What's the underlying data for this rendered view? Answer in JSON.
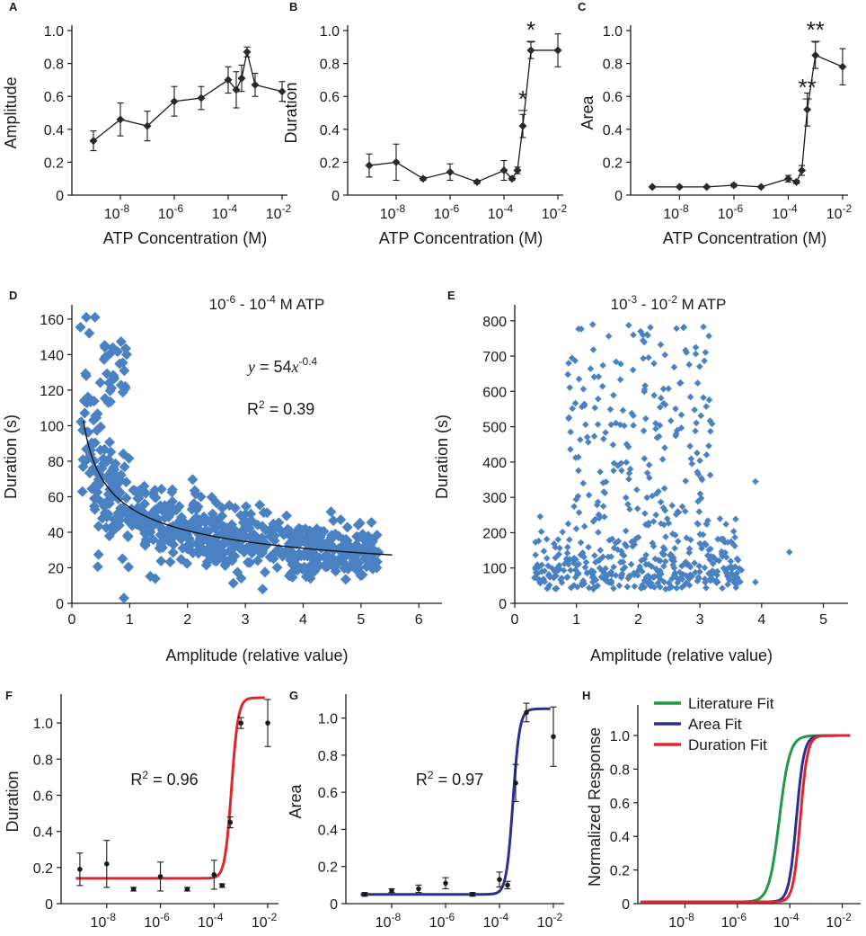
{
  "figure_title": "",
  "chart_data": [
    {
      "id": "A",
      "type": "line",
      "title": "",
      "xlabel": "ATP Concentration (M)",
      "ylabel": "Amplitude",
      "xscale": "log",
      "xlim": [
        -9.8,
        -1.8
      ],
      "ylim": [
        0,
        1.0
      ],
      "yticks": [
        "0",
        "0.2",
        "0.4",
        "0.6",
        "0.8",
        "1.0"
      ],
      "xticks": [
        {
          "base": "10",
          "exp": "-8"
        },
        {
          "base": "10",
          "exp": "-6"
        },
        {
          "base": "10",
          "exp": "-4"
        },
        {
          "base": "10",
          "exp": "-2"
        }
      ],
      "x": [
        -9,
        -8,
        -7,
        -6,
        -5,
        -4,
        -3.7,
        -3.5,
        -3.3,
        -3,
        -2
      ],
      "y": [
        0.33,
        0.46,
        0.42,
        0.57,
        0.59,
        0.7,
        0.64,
        0.71,
        0.87,
        0.67,
        0.63
      ],
      "err": [
        0.06,
        0.1,
        0.09,
        0.09,
        0.07,
        0.08,
        0.11,
        0.08,
        0.03,
        0.07,
        0.06
      ],
      "annotations": []
    },
    {
      "id": "B",
      "type": "line",
      "title": "",
      "xlabel": "ATP Concentration (M)",
      "ylabel": "Duration",
      "xscale": "log",
      "xlim": [
        -9.8,
        -1.8
      ],
      "ylim": [
        0,
        1.0
      ],
      "yticks": [
        "0",
        "0.2",
        "0.4",
        "0.6",
        "0.8",
        "1.0"
      ],
      "xticks": [
        {
          "base": "10",
          "exp": "-8"
        },
        {
          "base": "10",
          "exp": "-6"
        },
        {
          "base": "10",
          "exp": "-4"
        },
        {
          "base": "10",
          "exp": "-2"
        }
      ],
      "x": [
        -9,
        -8,
        -7,
        -6,
        -5,
        -4,
        -3.7,
        -3.5,
        -3.3,
        -3,
        -2
      ],
      "y": [
        0.18,
        0.2,
        0.1,
        0.14,
        0.08,
        0.15,
        0.1,
        0.15,
        0.42,
        0.88,
        0.88
      ],
      "err": [
        0.07,
        0.11,
        0.01,
        0.05,
        0.01,
        0.06,
        0.01,
        0.02,
        0.07,
        0.05,
        0.1
      ],
      "annotations": [
        {
          "text": "*",
          "x": -3.3,
          "y": 0.58
        },
        {
          "text": "*",
          "x": -3.0,
          "y": 1.0
        }
      ]
    },
    {
      "id": "C",
      "type": "line",
      "title": "",
      "xlabel": "ATP Concentration (M)",
      "ylabel": "Area",
      "xscale": "log",
      "xlim": [
        -9.8,
        -1.8
      ],
      "ylim": [
        0,
        1.0
      ],
      "yticks": [
        "0",
        "0.2",
        "0.4",
        "0.6",
        "0.8",
        "1.0"
      ],
      "xticks": [
        {
          "base": "10",
          "exp": "-8"
        },
        {
          "base": "10",
          "exp": "-6"
        },
        {
          "base": "10",
          "exp": "-4"
        },
        {
          "base": "10",
          "exp": "-2"
        }
      ],
      "x": [
        -9,
        -8,
        -7,
        -6,
        -5,
        -4,
        -3.7,
        -3.5,
        -3.3,
        -3,
        -2
      ],
      "y": [
        0.05,
        0.05,
        0.05,
        0.06,
        0.05,
        0.1,
        0.08,
        0.15,
        0.52,
        0.85,
        0.78
      ],
      "err": [
        0.005,
        0.005,
        0.005,
        0.01,
        0.005,
        0.02,
        0.01,
        0.03,
        0.1,
        0.08,
        0.11
      ],
      "annotations": [
        {
          "text": "**",
          "x": -3.3,
          "y": 0.65
        },
        {
          "text": "**",
          "x": -3.0,
          "y": 1.0
        }
      ]
    },
    {
      "id": "D",
      "type": "scatter",
      "title": "",
      "xlabel": "Amplitude (relative value)",
      "ylabel": "Duration (s)",
      "xlim": [
        0,
        6.4
      ],
      "ylim": [
        0,
        165
      ],
      "xticks": [
        "0",
        "1",
        "2",
        "3",
        "4",
        "5",
        "6"
      ],
      "yticks": [
        "0",
        "20",
        "40",
        "60",
        "80",
        "100",
        "120",
        "140",
        "160"
      ],
      "legend_text": {
        "pre": "10",
        "exp": "-6",
        "mid": " - 10",
        "exp2": "-4",
        "post": " M ATP"
      },
      "equation": {
        "y": "y",
        "eq": " = 54",
        "x": "x",
        "exp": "-0.4"
      },
      "r2": {
        "pre": "R",
        "sup": "2",
        "post": " = 0.39"
      },
      "fit": {
        "a": 54,
        "b": -0.4,
        "xmin": 0.2,
        "xmax": 5.55
      },
      "point_count": 640,
      "color": "#4a81c3"
    },
    {
      "id": "E",
      "type": "scatter",
      "title": "",
      "xlabel": "Amplitude (relative value)",
      "ylabel": "Duration (s)",
      "xlim": [
        0,
        5.4
      ],
      "ylim": [
        0,
        830
      ],
      "xticks": [
        "0",
        "1",
        "2",
        "3",
        "4",
        "5"
      ],
      "yticks": [
        "0",
        "100",
        "200",
        "300",
        "400",
        "500",
        "600",
        "700",
        "800"
      ],
      "legend_text": {
        "pre": "10",
        "exp": "-3",
        "mid": " - 10",
        "exp2": "-2",
        "post": " M ATP"
      },
      "point_count": 560,
      "color": "#4a81c3"
    },
    {
      "id": "F",
      "type": "scatter",
      "title": "",
      "xlabel": "ATP Concentration (M)",
      "ylabel": "Duration",
      "xscale": "log",
      "xlim": [
        -9.7,
        -1.6
      ],
      "ylim": [
        0,
        1.13
      ],
      "yticks": [
        "0",
        "0.2",
        "0.4",
        "0.6",
        "0.8",
        "1.0"
      ],
      "xticks": [
        {
          "base": "10",
          "exp": "-8"
        },
        {
          "base": "10",
          "exp": "-6"
        },
        {
          "base": "10",
          "exp": "-4"
        },
        {
          "base": "10",
          "exp": "-2"
        }
      ],
      "x": [
        -9,
        -8,
        -7,
        -6,
        -5,
        -4,
        -3.7,
        -3.4,
        -3,
        -2
      ],
      "y": [
        0.19,
        0.22,
        0.08,
        0.15,
        0.08,
        0.16,
        0.1,
        0.45,
        1.0,
        1.0
      ],
      "err": [
        0.09,
        0.13,
        0.01,
        0.08,
        0.01,
        0.08,
        0.01,
        0.03,
        0.03,
        0.13
      ],
      "r2": {
        "pre": "R",
        "sup": "2",
        "post": " = 0.96"
      },
      "fit": {
        "bottom": 0.14,
        "top": 1.14,
        "logEC50": -3.35,
        "hill": 3.5
      },
      "fit_color": "#e0262c"
    },
    {
      "id": "G",
      "type": "scatter",
      "title": "",
      "xlabel": "ATP Concentration (M)",
      "ylabel": "Area",
      "xscale": "log",
      "xlim": [
        -9.7,
        -1.6
      ],
      "ylim": [
        0,
        1.1
      ],
      "yticks": [
        "0",
        "0.2",
        "0.4",
        "0.6",
        "0.8",
        "1.0"
      ],
      "xticks": [
        {
          "base": "10",
          "exp": "-8"
        },
        {
          "base": "10",
          "exp": "-6"
        },
        {
          "base": "10",
          "exp": "-4"
        },
        {
          "base": "10",
          "exp": "-2"
        }
      ],
      "x": [
        -9,
        -8,
        -7,
        -6,
        -5,
        -4,
        -3.7,
        -3.4,
        -3,
        -2
      ],
      "y": [
        0.05,
        0.07,
        0.08,
        0.11,
        0.05,
        0.13,
        0.1,
        0.65,
        1.03,
        0.9
      ],
      "err": [
        0.01,
        0.01,
        0.02,
        0.03,
        0.01,
        0.04,
        0.02,
        0.1,
        0.05,
        0.16
      ],
      "r2": {
        "pre": "R",
        "sup": "2",
        "post": " = 0.97"
      },
      "fit": {
        "bottom": 0.05,
        "top": 1.05,
        "logEC50": -3.5,
        "hill": 3.5
      },
      "fit_color": "#2b2f8f"
    },
    {
      "id": "H",
      "type": "line",
      "title": "",
      "xlabel": "ATP Concentration (M)",
      "ylabel": "Normalized Response",
      "xscale": "log",
      "xlim": [
        -9.8,
        -1.3
      ],
      "ylim": [
        0,
        1.15
      ],
      "yticks": [
        "0",
        "0.2",
        "0.4",
        "0.6",
        "0.8",
        "1.0"
      ],
      "xticks": [
        {
          "base": "10",
          "exp": "-8"
        },
        {
          "base": "10",
          "exp": "-6"
        },
        {
          "base": "10",
          "exp": "-4"
        },
        {
          "base": "10",
          "exp": "-2"
        }
      ],
      "legend_position": "top",
      "series": [
        {
          "name": "Literature Fit",
          "color": "#1f9a4a",
          "logEC50": -4.4,
          "hill": 2.2,
          "bottom": 0.01,
          "top": 1.0
        },
        {
          "name": "Area Fit",
          "color": "#2b2f8f",
          "logEC50": -3.75,
          "hill": 3.0,
          "bottom": 0.01,
          "top": 1.0
        },
        {
          "name": "Duration Fit",
          "color": "#e0262c",
          "logEC50": -3.6,
          "hill": 3.2,
          "bottom": 0.01,
          "top": 1.0
        }
      ]
    }
  ]
}
